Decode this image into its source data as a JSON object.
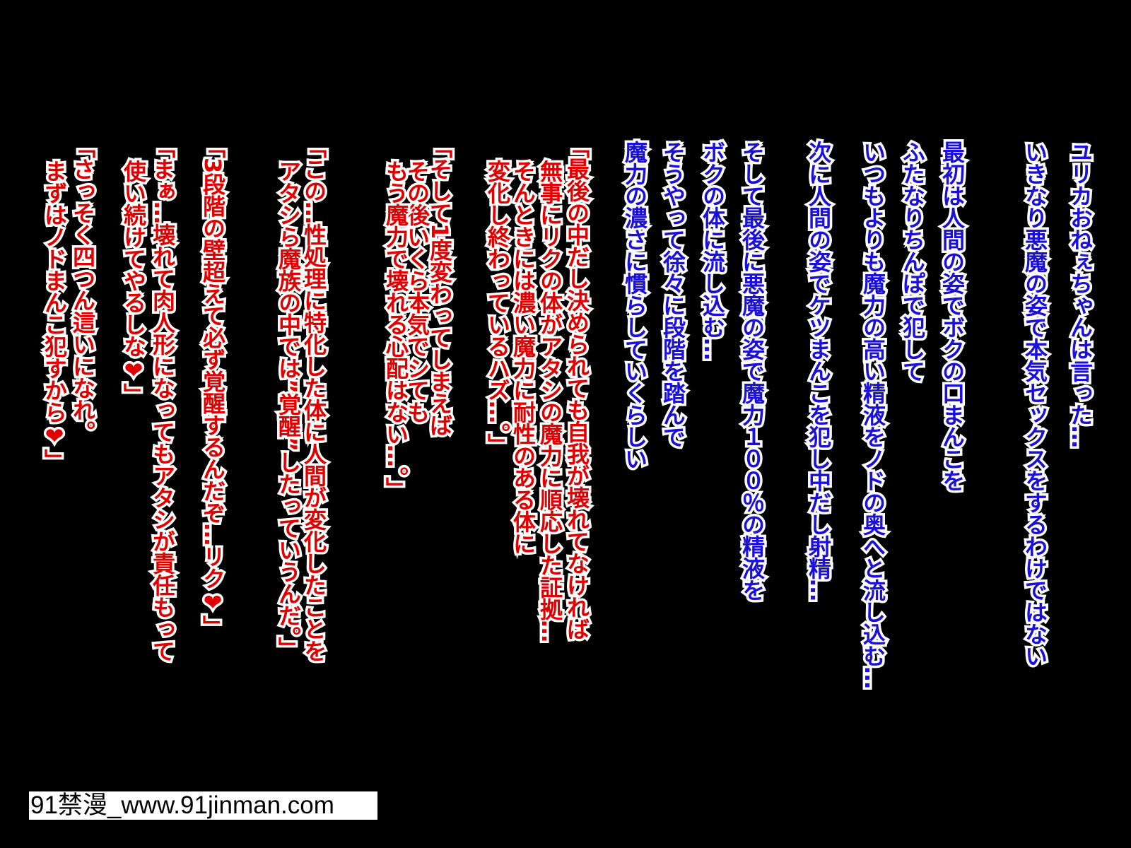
{
  "narration": [
    "ユリカおねぇちゃんは言った…",
    "いきなり悪魔の姿で本気セックスをするわけではない",
    "最初は人間の姿でボクの口まんこを",
    "ふたなりちんぽで犯して",
    "いつもよりも魔力の高い精液をノドの奥へと流し込む…",
    "次に人間の姿でケツまんこを犯し中だし射精…",
    "そして最後に悪魔の姿で魔力１００％の精液を",
    "ボクの体に流し込む…",
    "そうやって徐々に段階を踏んで",
    "魔力の濃さに慣らしていくらしい"
  ],
  "dialogue": [
    [
      "「最後の中だし決められても自我が壊れてなければ",
      "無事にリクの体がアタシの魔力に順応した証拠…",
      "そんときには濃い魔力に耐性のある体に",
      "変化し終わっているハズ…。」"
    ],
    [
      "「そして1度変わってしまえば",
      "その後いくら本気でシても",
      "もう魔力で壊れる心配はない…。」"
    ],
    [
      "「この…性処理に特化した体に人間が変化したことを",
      "アタシら魔族の中では”覚醒”したっていうんだ。」"
    ],
    [
      "「3段階の壁超えて必ず覚醒するんだぞ…リク❤」"
    ],
    [
      "「まぁ…壊れて肉人形になってもアタシが責任もって",
      "使い続けてやるしな❤」"
    ],
    [
      "「さっそく四つん這いになれ。",
      "まずはノドまんこ犯すから❤」"
    ]
  ],
  "watermark": "91禁漫_www.91jinman.com"
}
